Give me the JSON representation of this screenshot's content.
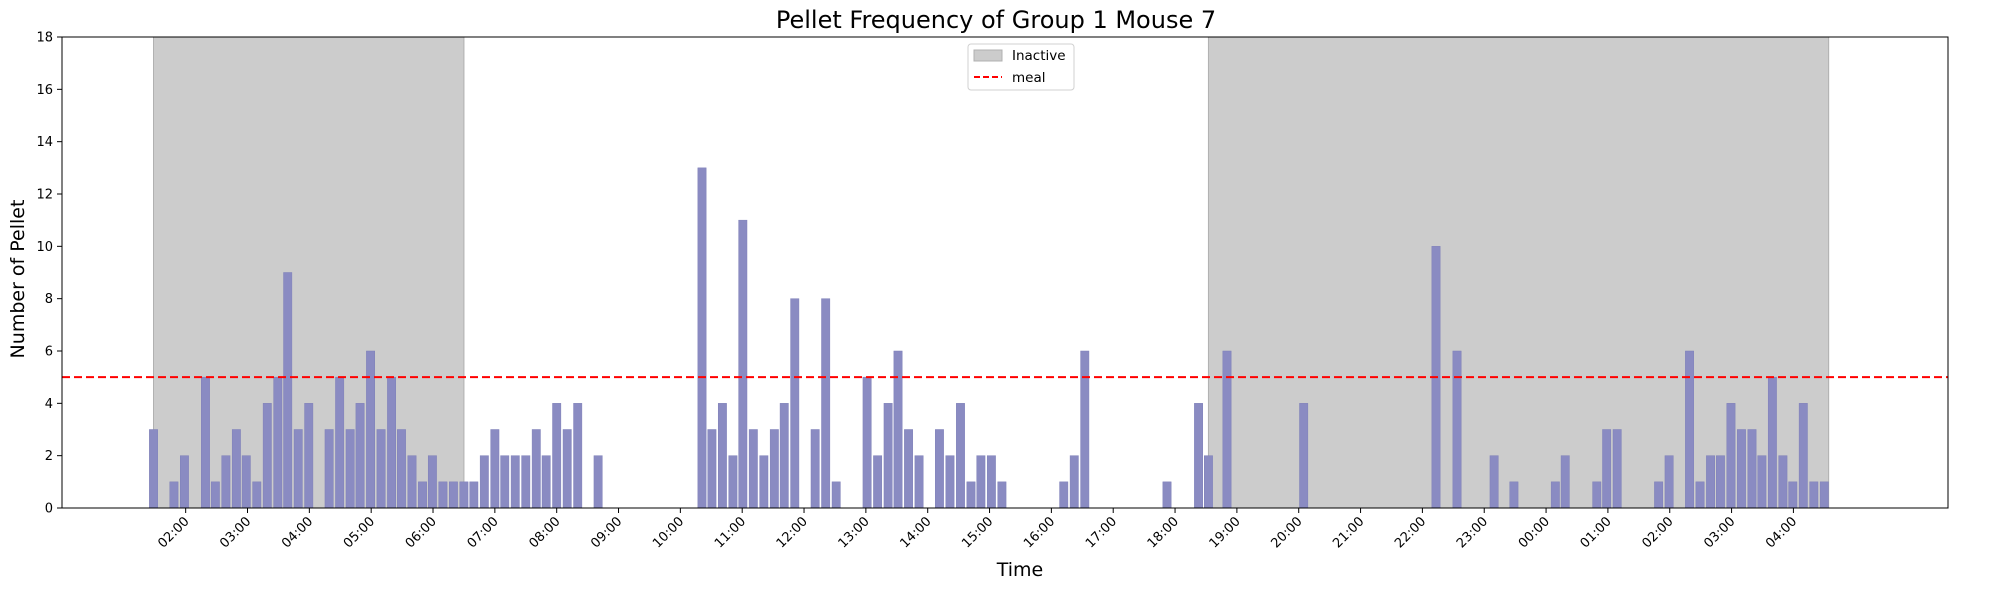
{
  "chart_data": {
    "type": "bar",
    "title": "Pellet Frequency of Group 1 Mouse 7",
    "xlabel": "Time",
    "ylabel": "Number of Pellet",
    "ylim": [
      0,
      18
    ],
    "yticks": [
      0,
      2,
      4,
      6,
      8,
      10,
      12,
      14,
      16,
      18
    ],
    "x_unit": "hours elapsed since 02:00 of day 1",
    "xlim": [
      -2.0,
      28.5
    ],
    "xticks": [
      {
        "x": 0,
        "label": "02:00"
      },
      {
        "x": 1,
        "label": "03:00"
      },
      {
        "x": 2,
        "label": "04:00"
      },
      {
        "x": 3,
        "label": "05:00"
      },
      {
        "x": 4,
        "label": "06:00"
      },
      {
        "x": 5,
        "label": "07:00"
      },
      {
        "x": 6,
        "label": "08:00"
      },
      {
        "x": 7,
        "label": "09:00"
      },
      {
        "x": 8,
        "label": "10:00"
      },
      {
        "x": 9,
        "label": "11:00"
      },
      {
        "x": 10,
        "label": "12:00"
      },
      {
        "x": 11,
        "label": "13:00"
      },
      {
        "x": 12,
        "label": "14:00"
      },
      {
        "x": 13,
        "label": "15:00"
      },
      {
        "x": 14,
        "label": "16:00"
      },
      {
        "x": 15,
        "label": "17:00"
      },
      {
        "x": 16,
        "label": "18:00"
      },
      {
        "x": 17,
        "label": "19:00"
      },
      {
        "x": 18,
        "label": "20:00"
      },
      {
        "x": 19,
        "label": "21:00"
      },
      {
        "x": 20,
        "label": "22:00"
      },
      {
        "x": 21,
        "label": "23:00"
      },
      {
        "x": 22,
        "label": "00:00"
      },
      {
        "x": 23,
        "label": "01:00"
      },
      {
        "x": 24,
        "label": "02:00"
      },
      {
        "x": 25,
        "label": "03:00"
      },
      {
        "x": 26,
        "label": "04:00"
      }
    ],
    "bar_width_hours": 0.135,
    "bars": [
      {
        "x": -0.52,
        "y": 3
      },
      {
        "x": -0.19,
        "y": 1
      },
      {
        "x": -0.02,
        "y": 2
      },
      {
        "x": 0.32,
        "y": 5
      },
      {
        "x": 0.48,
        "y": 1
      },
      {
        "x": 0.65,
        "y": 2
      },
      {
        "x": 0.82,
        "y": 3
      },
      {
        "x": 0.98,
        "y": 2
      },
      {
        "x": 1.15,
        "y": 1
      },
      {
        "x": 1.32,
        "y": 4
      },
      {
        "x": 1.49,
        "y": 5
      },
      {
        "x": 1.65,
        "y": 9
      },
      {
        "x": 1.82,
        "y": 3
      },
      {
        "x": 1.99,
        "y": 4
      },
      {
        "x": 2.32,
        "y": 3
      },
      {
        "x": 2.49,
        "y": 5
      },
      {
        "x": 2.66,
        "y": 3
      },
      {
        "x": 2.82,
        "y": 4
      },
      {
        "x": 2.99,
        "y": 6
      },
      {
        "x": 3.16,
        "y": 3
      },
      {
        "x": 3.33,
        "y": 5
      },
      {
        "x": 3.49,
        "y": 3
      },
      {
        "x": 3.66,
        "y": 2
      },
      {
        "x": 3.83,
        "y": 1
      },
      {
        "x": 3.99,
        "y": 2
      },
      {
        "x": 4.16,
        "y": 1
      },
      {
        "x": 4.33,
        "y": 1
      },
      {
        "x": 4.5,
        "y": 1
      },
      {
        "x": 4.66,
        "y": 1
      },
      {
        "x": 4.83,
        "y": 2
      },
      {
        "x": 5.0,
        "y": 3
      },
      {
        "x": 5.16,
        "y": 2
      },
      {
        "x": 5.33,
        "y": 2
      },
      {
        "x": 5.5,
        "y": 2
      },
      {
        "x": 5.67,
        "y": 3
      },
      {
        "x": 5.83,
        "y": 2
      },
      {
        "x": 6.0,
        "y": 4
      },
      {
        "x": 6.17,
        "y": 3
      },
      {
        "x": 6.34,
        "y": 4
      },
      {
        "x": 6.67,
        "y": 2
      },
      {
        "x": 8.35,
        "y": 13
      },
      {
        "x": 8.51,
        "y": 3
      },
      {
        "x": 8.68,
        "y": 4
      },
      {
        "x": 8.85,
        "y": 2
      },
      {
        "x": 9.01,
        "y": 11
      },
      {
        "x": 9.18,
        "y": 3
      },
      {
        "x": 9.35,
        "y": 2
      },
      {
        "x": 9.52,
        "y": 3
      },
      {
        "x": 9.68,
        "y": 4
      },
      {
        "x": 9.85,
        "y": 8
      },
      {
        "x": 10.18,
        "y": 3
      },
      {
        "x": 10.35,
        "y": 8
      },
      {
        "x": 10.52,
        "y": 1
      },
      {
        "x": 11.02,
        "y": 5
      },
      {
        "x": 11.19,
        "y": 2
      },
      {
        "x": 11.36,
        "y": 4
      },
      {
        "x": 11.52,
        "y": 6
      },
      {
        "x": 11.69,
        "y": 3
      },
      {
        "x": 11.86,
        "y": 2
      },
      {
        "x": 12.19,
        "y": 3
      },
      {
        "x": 12.36,
        "y": 2
      },
      {
        "x": 12.53,
        "y": 4
      },
      {
        "x": 12.7,
        "y": 1
      },
      {
        "x": 12.86,
        "y": 2
      },
      {
        "x": 13.03,
        "y": 2
      },
      {
        "x": 13.2,
        "y": 1
      },
      {
        "x": 14.2,
        "y": 1
      },
      {
        "x": 14.37,
        "y": 2
      },
      {
        "x": 14.54,
        "y": 6
      },
      {
        "x": 15.87,
        "y": 1
      },
      {
        "x": 16.38,
        "y": 4
      },
      {
        "x": 16.54,
        "y": 2
      },
      {
        "x": 16.84,
        "y": 6
      },
      {
        "x": 18.08,
        "y": 4
      },
      {
        "x": 20.22,
        "y": 10
      },
      {
        "x": 20.56,
        "y": 6
      },
      {
        "x": 21.16,
        "y": 2
      },
      {
        "x": 21.48,
        "y": 1
      },
      {
        "x": 22.15,
        "y": 1
      },
      {
        "x": 22.31,
        "y": 2
      },
      {
        "x": 22.82,
        "y": 1
      },
      {
        "x": 22.98,
        "y": 3
      },
      {
        "x": 23.15,
        "y": 3
      },
      {
        "x": 23.82,
        "y": 1
      },
      {
        "x": 23.99,
        "y": 2
      },
      {
        "x": 24.32,
        "y": 6
      },
      {
        "x": 24.49,
        "y": 1
      },
      {
        "x": 24.66,
        "y": 2
      },
      {
        "x": 24.82,
        "y": 2
      },
      {
        "x": 24.99,
        "y": 4
      },
      {
        "x": 25.16,
        "y": 3
      },
      {
        "x": 25.33,
        "y": 3
      },
      {
        "x": 25.49,
        "y": 2
      },
      {
        "x": 25.66,
        "y": 5
      },
      {
        "x": 25.83,
        "y": 2
      },
      {
        "x": 25.99,
        "y": 1
      },
      {
        "x": 26.16,
        "y": 4
      },
      {
        "x": 26.33,
        "y": 1
      },
      {
        "x": 26.5,
        "y": 1
      }
    ],
    "inactive_spans": [
      {
        "start": -0.52,
        "end": 4.5
      },
      {
        "start": 16.54,
        "end": 26.57
      }
    ],
    "meal_threshold": 5,
    "legend": [
      {
        "label": "Inactive",
        "kind": "patch"
      },
      {
        "label": "meal",
        "kind": "dashed-line"
      }
    ],
    "legend_position": "top-center",
    "grid": false,
    "colors": {
      "bar": "#8a8bc2",
      "bar_edge": "#7f80b8",
      "inactive_fill": "#cccccc",
      "inactive_edge": "#b0b0b0",
      "meal_line": "#ff0000"
    }
  }
}
